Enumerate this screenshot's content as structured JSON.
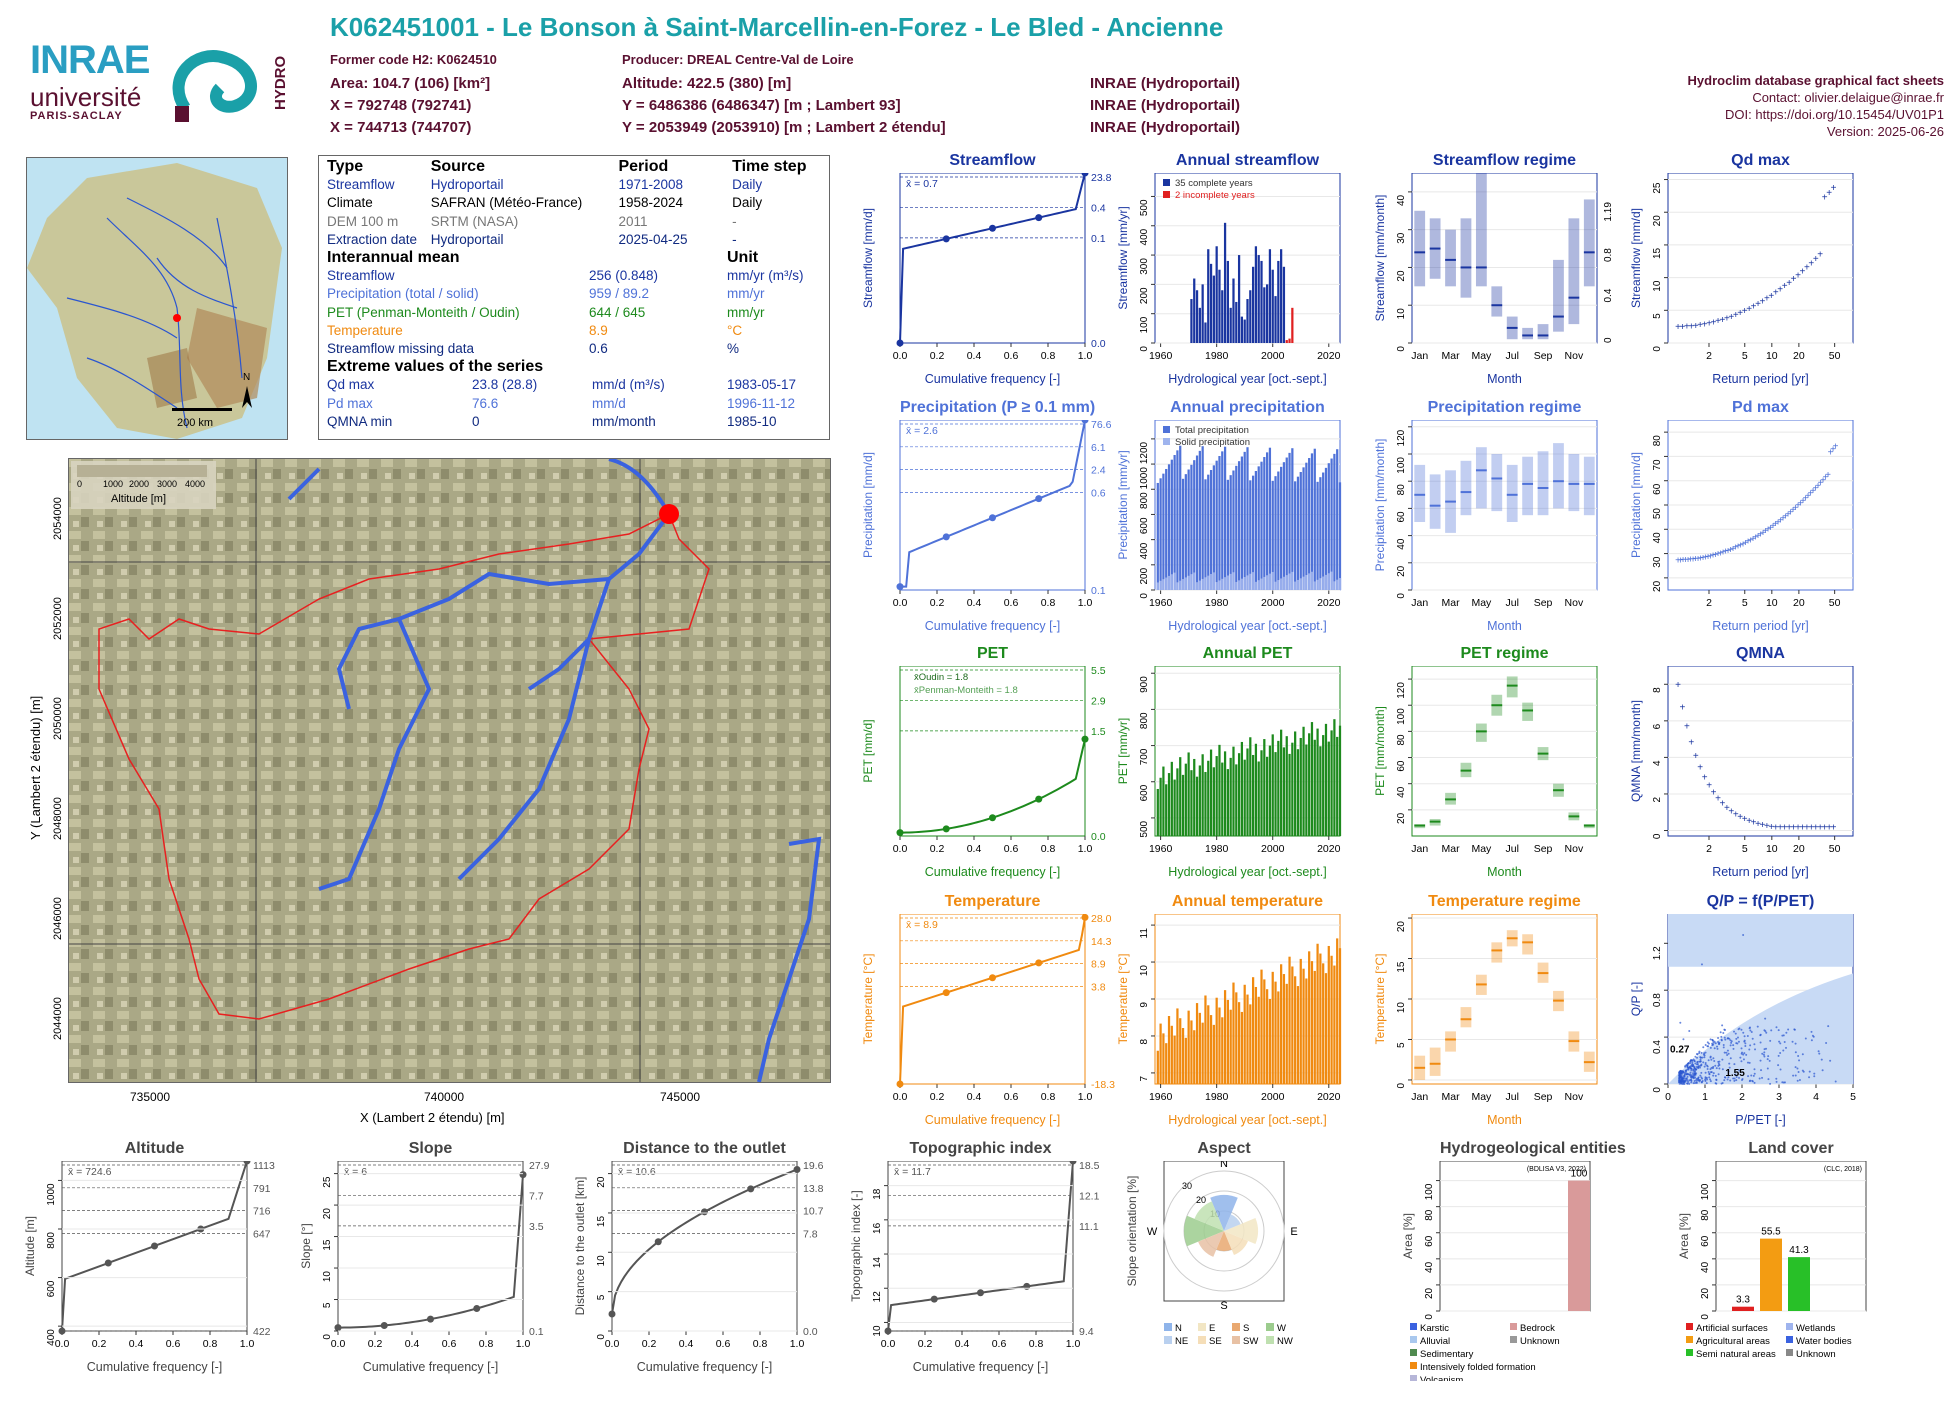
{
  "header": {
    "title": "K062451001 - Le Bonson à Saint-Marcellin-en-Forez - Le Bled - Ancienne",
    "former_code": "Former code H2: K0624510",
    "producer": "Producer: DREAL Centre-Val de Loire",
    "area": "Area: 104.7 (106) [km²]",
    "altitude": "Altitude: 422.5 (380) [m]",
    "x1": "X = 792748 (792741)",
    "y1": "Y = 6486386 (6486347) [m ; Lambert 93]",
    "x2": "X = 744713 (744707)",
    "y2": "Y = 2053949 (2053910) [m ; Lambert 2 étendu]",
    "src1": "INRAE (Hydroportail)",
    "src2": "INRAE (Hydroportail)",
    "src3": "INRAE (Hydroportail)",
    "right_title": "Hydroclim database graphical fact sheets",
    "contact": "Contact: olivier.delaigue@inrae.fr",
    "doi": "DOI: https://doi.org/10.15454/UV01P1",
    "version": "Version: 2025-06-26"
  },
  "logos": {
    "inrae": "INRAE",
    "universite": "université",
    "paris_saclay": "PARIS-SACLAY",
    "hydro": "HYDRO"
  },
  "info": {
    "head": [
      "Type",
      "Source",
      "Period",
      "Time step"
    ],
    "rows": [
      [
        "Streamflow",
        "Hydroportail",
        "1971-2008",
        "Daily"
      ],
      [
        "Climate",
        "SAFRAN (Météo-France)",
        "1958-2024",
        "Daily"
      ],
      [
        "DEM 100 m",
        "SRTM (NASA)",
        "2011",
        "-"
      ],
      [
        "Extraction date",
        "Hydroportail",
        "2025-04-25",
        "-"
      ]
    ],
    "interannual_title": "Interannual mean",
    "unit_title": "Unit",
    "means": [
      [
        "Streamflow",
        "256 (0.848)",
        "mm/yr (m³/s)"
      ],
      [
        "Precipitation (total / solid)",
        "959 / 89.2",
        "mm/yr"
      ],
      [
        "PET (Penman-Monteith / Oudin)",
        "644 / 645",
        "mm/yr"
      ],
      [
        "Temperature",
        "8.9",
        "°C"
      ],
      [
        "Streamflow missing data",
        "0.6",
        "%"
      ]
    ],
    "extreme_title": "Extreme values of the series",
    "extremes": [
      [
        "Qd max",
        "23.8 (28.8)",
        "mm/d (m³/s)",
        "1983-05-17"
      ],
      [
        "Pd max",
        "76.6",
        "mm/d",
        "1996-11-12"
      ],
      [
        "QMNA min",
        "0",
        "mm/month",
        "1985-10"
      ]
    ]
  },
  "minimap": {
    "scale": "200 km",
    "north": "N"
  },
  "bigmap": {
    "legend_title": "Altitude [m]",
    "legend_ticks": [
      "0",
      "1000",
      "2000",
      "3000",
      "4000"
    ],
    "xlabel": "X (Lambert 2 étendu) [m]",
    "ylabel": "Y (Lambert 2 étendu) [m]",
    "xticks": [
      "735000",
      "740000",
      "745000"
    ],
    "yticks": [
      "2054000",
      "2052000",
      "2050000",
      "2048000",
      "2046000",
      "2044000"
    ]
  },
  "colors": {
    "teal": "#1aa0a8",
    "maroon": "#5a1030",
    "flow": "#1a35a0",
    "precip": "#4f72d8",
    "pet": "#1d8a1d",
    "temp": "#f08a10"
  },
  "chart_data": [
    {
      "id": "streamflow",
      "type": "line",
      "title": "Streamflow",
      "xlabel": "Cumulative frequency [-]",
      "ylabel": "Streamflow [mm/d]",
      "mean": "x̄ = 0.7",
      "color": "#1a35a0",
      "right_ticks": [
        "23.8",
        "0.4",
        "0.1",
        "0.0"
      ],
      "xticks": [
        "0.0",
        "0.2",
        "0.4",
        "0.6",
        "0.8",
        "1.0"
      ],
      "points": [
        [
          0,
          0.0
        ],
        [
          0.25,
          0.1
        ],
        [
          0.5,
          0.4
        ],
        [
          0.75,
          0.7
        ],
        [
          1,
          23.8
        ]
      ]
    },
    {
      "id": "annual_streamflow",
      "type": "bar",
      "title": "Annual streamflow",
      "xlabel": "Hydrological year [oct.-sept.]",
      "ylabel": "Streamflow [mm/yr]",
      "legend": [
        "35 complete years",
        "2 incomplete years"
      ],
      "xticks": [
        "1960",
        "1980",
        "2000",
        "2020"
      ],
      "yticks": [
        "0",
        "100",
        "200",
        "300",
        "400",
        "500"
      ],
      "xlim": [
        1958,
        2024
      ],
      "ylim": [
        0,
        580
      ],
      "years": [
        1971,
        1972,
        1973,
        1974,
        1975,
        1976,
        1977,
        1978,
        1979,
        1980,
        1981,
        1982,
        1983,
        1984,
        1985,
        1986,
        1987,
        1988,
        1989,
        1990,
        1991,
        1992,
        1993,
        1994,
        1995,
        1996,
        1997,
        1998,
        1999,
        2000,
        2001,
        2002,
        2003,
        2004,
        2005,
        2006,
        2007
      ],
      "values": [
        150,
        220,
        180,
        120,
        200,
        70,
        320,
        270,
        230,
        330,
        250,
        180,
        410,
        280,
        120,
        220,
        140,
        300,
        90,
        80,
        150,
        180,
        260,
        330,
        300,
        280,
        190,
        200,
        320,
        250,
        160,
        280,
        320,
        260,
        10,
        15,
        120
      ]
    },
    {
      "id": "streamflow_regime",
      "type": "box",
      "title": "Streamflow regime",
      "xlabel": "Month",
      "ylabel": "Streamflow [mm/month]",
      "xticks": [
        "Jan",
        "Mar",
        "May",
        "Jul",
        "Sep",
        "Nov"
      ],
      "yticks": [
        "0",
        "10",
        "20",
        "30",
        "40"
      ],
      "ylim": [
        0,
        45
      ],
      "right_ticks": [
        "0",
        "0.4",
        "0.8",
        "1.19"
      ],
      "box": [
        [
          15,
          35,
          24
        ],
        [
          17,
          33,
          25
        ],
        [
          15,
          30,
          22
        ],
        [
          12,
          33,
          20
        ],
        [
          15,
          45,
          20
        ],
        [
          7,
          15,
          10
        ],
        [
          1,
          7,
          4
        ],
        [
          1,
          4,
          2
        ],
        [
          1,
          5,
          2
        ],
        [
          3,
          22,
          7
        ],
        [
          5,
          33,
          12
        ],
        [
          15,
          38,
          24
        ]
      ]
    },
    {
      "id": "qd_max",
      "type": "scatter",
      "title": "Qd max",
      "xlabel": "Return period [yr]",
      "ylabel": "Streamflow [mm/d]",
      "xticks": [
        "2",
        "5",
        "10",
        "20",
        "50"
      ],
      "yticks": [
        "0",
        "5",
        "10",
        "15",
        "20",
        "25"
      ],
      "ylim": [
        0,
        26
      ]
    },
    {
      "id": "precipitation",
      "type": "line",
      "title": "Precipitation (P ≥ 0.1 mm)",
      "xlabel": "Cumulative frequency [-]",
      "ylabel": "Precipitation [mm/d]",
      "mean": "x̄ = 2.6",
      "color": "#4f72d8",
      "right_ticks": [
        "76.6",
        "6.1",
        "2.4",
        "0.6",
        "0.1"
      ],
      "xticks": [
        "0.0",
        "0.2",
        "0.4",
        "0.6",
        "0.8",
        "1.0"
      ]
    },
    {
      "id": "annual_precipitation",
      "type": "bar",
      "title": "Annual precipitation",
      "xlabel": "Hydrological year [oct.-sept.]",
      "ylabel": "Precipitation [mm/yr]",
      "legend": [
        "Total precipitation",
        "Solid precipitation"
      ],
      "xticks": [
        "1960",
        "1980",
        "2000",
        "2020"
      ],
      "yticks": [
        "0",
        "200",
        "400",
        "600",
        "800",
        "1000",
        "1200"
      ],
      "xlim": [
        1958,
        2024
      ],
      "ylim": [
        0,
        1350
      ]
    },
    {
      "id": "precipitation_regime",
      "type": "box",
      "title": "Precipitation regime",
      "xlabel": "Month",
      "ylabel": "Precipitation [mm/month]",
      "xticks": [
        "Jan",
        "Mar",
        "May",
        "Jul",
        "Sep",
        "Nov"
      ],
      "yticks": [
        "0",
        "20",
        "40",
        "60",
        "80",
        "100",
        "120"
      ],
      "ylim": [
        0,
        125
      ],
      "box": [
        [
          50,
          92,
          70
        ],
        [
          45,
          85,
          62
        ],
        [
          42,
          88,
          65
        ],
        [
          55,
          95,
          72
        ],
        [
          60,
          105,
          88
        ],
        [
          58,
          100,
          82
        ],
        [
          50,
          92,
          70
        ],
        [
          55,
          98,
          78
        ],
        [
          55,
          102,
          75
        ],
        [
          60,
          108,
          80
        ],
        [
          58,
          100,
          78
        ],
        [
          55,
          98,
          78
        ]
      ]
    },
    {
      "id": "pd_max",
      "type": "scatter",
      "title": "Pd max",
      "xlabel": "Return period [yr]",
      "ylabel": "Precipitation [mm/d]",
      "xticks": [
        "2",
        "5",
        "10",
        "20",
        "50"
      ],
      "yticks": [
        "20",
        "30",
        "40",
        "50",
        "60",
        "70",
        "80"
      ],
      "ylim": [
        15,
        85
      ]
    },
    {
      "id": "pet",
      "type": "line",
      "title": "PET",
      "xlabel": "Cumulative frequency [-]",
      "ylabel": "PET [mm/d]",
      "legend": [
        "x̄Oudin = 1.8",
        "x̄Penman-Monteith = 1.8"
      ],
      "color": "#1d8a1d",
      "right_ticks": [
        "5.5",
        "2.9",
        "1.5",
        "0.0"
      ],
      "xticks": [
        "0.0",
        "0.2",
        "0.4",
        "0.6",
        "0.8",
        "1.0"
      ]
    },
    {
      "id": "annual_pet",
      "type": "bar",
      "title": "Annual PET",
      "xlabel": "Hydrological year [oct.-sept.]",
      "ylabel": "PET [mm/yr]",
      "xticks": [
        "1960",
        "1980",
        "2000",
        "2020"
      ],
      "yticks": [
        "500",
        "600",
        "700",
        "800",
        "900"
      ],
      "xlim": [
        1958,
        2024
      ],
      "ylim": [
        450,
        920
      ]
    },
    {
      "id": "pet_regime",
      "type": "box",
      "title": "PET regime",
      "xlabel": "Month",
      "ylabel": "PET [mm/month]",
      "xticks": [
        "Jan",
        "Mar",
        "May",
        "Jul",
        "Sep",
        "Nov"
      ],
      "yticks": [
        "20",
        "40",
        "60",
        "80",
        "100",
        "120"
      ],
      "ylim": [
        0,
        130
      ],
      "box": [
        [
          6,
          9,
          8
        ],
        [
          8,
          13,
          11
        ],
        [
          24,
          33,
          28
        ],
        [
          45,
          56,
          50
        ],
        [
          72,
          86,
          80
        ],
        [
          92,
          108,
          100
        ],
        [
          106,
          122,
          115
        ],
        [
          88,
          102,
          96
        ],
        [
          58,
          68,
          63
        ],
        [
          30,
          40,
          35
        ],
        [
          12,
          18,
          15
        ],
        [
          6,
          9,
          8
        ]
      ]
    },
    {
      "id": "qmna",
      "type": "scatter",
      "title": "QMNA",
      "xlabel": "Return period [yr]",
      "ylabel": "QMNA [mm/month]",
      "xticks": [
        "2",
        "5",
        "10",
        "20",
        "50"
      ],
      "yticks": [
        "0",
        "2",
        "4",
        "6",
        "8"
      ],
      "ylim": [
        -0.3,
        9
      ]
    },
    {
      "id": "temperature",
      "type": "line",
      "title": "Temperature",
      "xlabel": "Cumulative frequency [-]",
      "ylabel": "Temperature [°C]",
      "mean": "x̄ = 8.9",
      "color": "#f08a10",
      "right_ticks": [
        "28.0",
        "14.3",
        "8.9",
        "3.8",
        "-18.3"
      ],
      "xticks": [
        "0.0",
        "0.2",
        "0.4",
        "0.6",
        "0.8",
        "1.0"
      ]
    },
    {
      "id": "annual_temperature",
      "type": "bar",
      "title": "Annual temperature",
      "xlabel": "Hydrological year [oct.-sept.]",
      "ylabel": "Temperature [°C]",
      "xticks": [
        "1960",
        "1980",
        "2000",
        "2020"
      ],
      "yticks": [
        "7",
        "8",
        "9",
        "10",
        "11"
      ],
      "xlim": [
        1958,
        2024
      ],
      "ylim": [
        6.7,
        11.3
      ]
    },
    {
      "id": "temperature_regime",
      "type": "box",
      "title": "Temperature regime",
      "xlabel": "Month",
      "ylabel": "Temperature [°C]",
      "xticks": [
        "Jan",
        "Mar",
        "May",
        "Jul",
        "Sep",
        "Nov"
      ],
      "yticks": [
        "0",
        "5",
        "10",
        "15",
        "20"
      ],
      "ylim": [
        -0.5,
        20.5
      ],
      "box": [
        [
          0,
          3,
          1.5
        ],
        [
          0.5,
          4,
          2
        ],
        [
          3.5,
          6,
          5
        ],
        [
          6.5,
          9,
          7.5
        ],
        [
          10.5,
          13,
          11.8
        ],
        [
          14.5,
          17,
          16
        ],
        [
          16.5,
          18.5,
          17.5
        ],
        [
          15.5,
          18,
          17
        ],
        [
          12,
          14.5,
          13.2
        ],
        [
          8.5,
          11,
          9.8
        ],
        [
          3.5,
          6,
          4.8
        ],
        [
          1,
          3.5,
          2.2
        ]
      ]
    },
    {
      "id": "qp_ppet",
      "type": "scatter",
      "title": "Q/P = f(P/PET)",
      "xlabel": "P/PET [-]",
      "ylabel": "Q/P [-]",
      "xticks": [
        "0",
        "1",
        "2",
        "3",
        "4",
        "5"
      ],
      "yticks": [
        "0",
        "0.4",
        "0.8",
        "1.2"
      ],
      "labels": [
        "0.27",
        "1.55"
      ]
    },
    {
      "id": "altitude",
      "type": "line",
      "title": "Altitude",
      "xlabel": "Cumulative frequency [-]",
      "ylabel": "Altitude [m]",
      "mean": "x̄ = 724.6",
      "right_ticks": [
        "1113",
        "791",
        "716",
        "647",
        "422"
      ],
      "yticks": [
        "400",
        "600",
        "800",
        "1000"
      ],
      "xticks": [
        "0.0",
        "0.2",
        "0.4",
        "0.6",
        "0.8",
        "1.0"
      ]
    },
    {
      "id": "slope",
      "type": "line",
      "title": "Slope",
      "xlabel": "Cumulative frequency [-]",
      "ylabel": "Slope [°]",
      "mean": "x̄ = 6",
      "right_ticks": [
        "27.9",
        "7.7",
        "3.5",
        "0.1"
      ],
      "yticks": [
        "0",
        "5",
        "10",
        "15",
        "20",
        "25"
      ],
      "xticks": [
        "0.0",
        "0.2",
        "0.4",
        "0.6",
        "0.8",
        "1.0"
      ]
    },
    {
      "id": "distance",
      "type": "line",
      "title": "Distance to the outlet",
      "xlabel": "Cumulative frequency [-]",
      "ylabel": "Distance to the outlet [km]",
      "mean": "x̄ = 10.6",
      "right_ticks": [
        "19.6",
        "13.8",
        "10.7",
        "7.8",
        "0.0"
      ],
      "yticks": [
        "0",
        "5",
        "10",
        "15",
        "20"
      ],
      "xticks": [
        "0.0",
        "0.2",
        "0.4",
        "0.6",
        "0.8",
        "1.0"
      ]
    },
    {
      "id": "topo_index",
      "type": "line",
      "title": "Topographic index",
      "xlabel": "Cumulative frequency [-]",
      "ylabel": "Topographic index [-]",
      "mean": "x̄ = 11.7",
      "right_ticks": [
        "18.5",
        "12.1",
        "11.1",
        "9.4"
      ],
      "yticks": [
        "10",
        "12",
        "14",
        "16",
        "18"
      ],
      "xticks": [
        "0.0",
        "0.2",
        "0.4",
        "0.6",
        "0.8",
        "1.0"
      ]
    },
    {
      "id": "aspect",
      "type": "pie",
      "title": "Aspect",
      "ylabel": "Slope orientation [%]",
      "directions": [
        "N",
        "E",
        "S",
        "W"
      ],
      "rings": [
        "10",
        "20",
        "30"
      ],
      "legend": [
        "N",
        "E",
        "S",
        "W",
        "NE",
        "SE",
        "SW",
        "NW"
      ],
      "values": [
        18,
        17,
        10,
        20,
        9,
        13,
        14,
        16
      ]
    },
    {
      "id": "hydrogeology",
      "type": "bar",
      "title": "Hydrogeological entities",
      "ylabel": "Area [%]",
      "source": "(BDLISA V3, 2022)",
      "yticks": [
        "0",
        "20",
        "40",
        "60",
        "80",
        "100"
      ],
      "value_label": "100",
      "legend": [
        "Karstic",
        "Alluvial",
        "Sedimentary",
        "Intensively folded formation",
        "Volcanism",
        "Bedrock",
        "Unknown"
      ]
    },
    {
      "id": "land_cover",
      "type": "bar",
      "title": "Land cover",
      "ylabel": "Area [%]",
      "source": "(CLC, 2018)",
      "yticks": [
        "0",
        "20",
        "40",
        "60",
        "80",
        "100"
      ],
      "values": [
        3.3,
        55.5,
        41.3
      ],
      "value_labels": [
        "3.3",
        "55.5",
        "41.3"
      ],
      "legend": [
        "Artificial surfaces",
        "Agricultural areas",
        "Semi natural areas",
        "Wetlands",
        "Water bodies",
        "Unknown"
      ]
    }
  ]
}
